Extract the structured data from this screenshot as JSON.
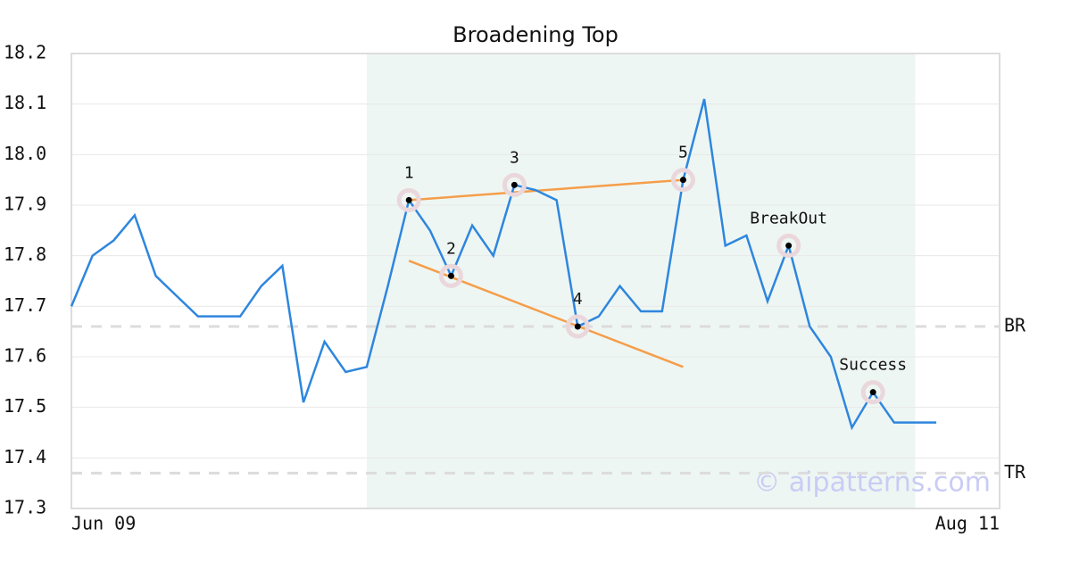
{
  "chart_data": {
    "type": "line",
    "title": "Broadening Top",
    "values": [
      17.7,
      17.8,
      17.83,
      17.88,
      17.76,
      17.72,
      17.68,
      17.68,
      17.68,
      17.74,
      17.78,
      17.51,
      17.63,
      17.57,
      17.58,
      17.74,
      17.91,
      17.85,
      17.76,
      17.86,
      17.8,
      17.94,
      17.93,
      17.91,
      17.66,
      17.68,
      17.74,
      17.69,
      17.69,
      17.95,
      18.11,
      17.82,
      17.84,
      17.71,
      17.82,
      17.66,
      17.6,
      17.46,
      17.53,
      17.47,
      17.47,
      17.47
    ],
    "color": "#2e86de",
    "xlim": [
      0,
      44
    ],
    "xticks": [
      {
        "value": 0,
        "label": "Jun 09"
      },
      {
        "value": 44,
        "label": "Aug 11"
      }
    ],
    "ylim": [
      17.3,
      18.2
    ],
    "yticks": [
      17.3,
      17.4,
      17.5,
      17.6,
      17.7,
      17.8,
      17.9,
      {
        "value": 18.0,
        "label": "18.0"
      },
      18.1,
      18.2
    ],
    "grid": true,
    "highlight": [
      14,
      40
    ],
    "trendlines": [
      {
        "x": [
          16,
          29
        ],
        "y": [
          17.91,
          17.95
        ],
        "color": "#f59e4a"
      },
      {
        "x": [
          16,
          29
        ],
        "y": [
          17.79,
          17.58
        ],
        "color": "#f59e4a"
      }
    ],
    "levels": [
      {
        "label": "BR",
        "value": 17.66
      },
      {
        "label": "TR",
        "value": 17.37
      }
    ],
    "annotations": [
      {
        "label": "1",
        "x": 16,
        "y": 17.91
      },
      {
        "label": "2",
        "x": 18,
        "y": 17.76
      },
      {
        "label": "3",
        "x": 21,
        "y": 17.94
      },
      {
        "label": "4",
        "x": 24,
        "y": 17.66
      },
      {
        "label": "5",
        "x": 29,
        "y": 17.95
      },
      {
        "label": "BreakOut",
        "x": 34,
        "y": 17.82
      },
      {
        "label": "Success",
        "x": 38,
        "y": 17.53
      }
    ],
    "watermark": "© aipatterns.com"
  }
}
